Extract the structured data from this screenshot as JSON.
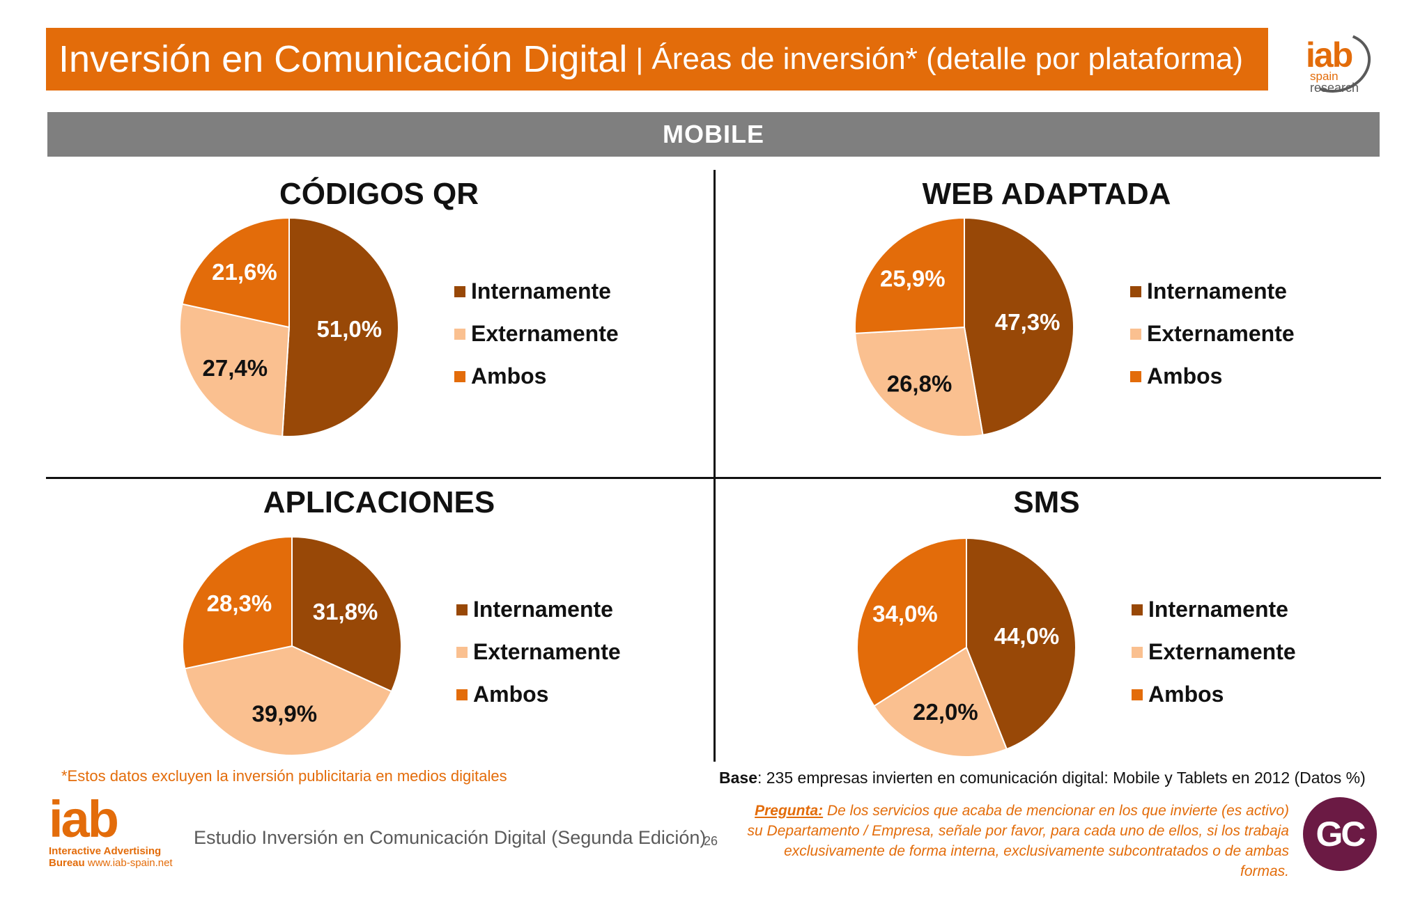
{
  "header": {
    "title_main": "Inversión en Comunicación Digital",
    "title_separator": "|",
    "title_sub": "Áreas de inversión* (detalle por plataforma)",
    "logo_word": "iab",
    "logo_spain": "spain",
    "logo_research": "research"
  },
  "section": {
    "label": "MOBILE"
  },
  "colors": {
    "internamente": "#984807",
    "externamente": "#fac090",
    "ambos": "#e36c0a",
    "accent": "#e36c0a"
  },
  "legend_labels": [
    "Internamente",
    "Externamente",
    "Ambos"
  ],
  "chart_data": [
    {
      "type": "pie",
      "title": "CÓDIGOS QR",
      "categories": [
        "Internamente",
        "Externamente",
        "Ambos"
      ],
      "values": [
        51.0,
        27.4,
        21.6
      ],
      "labels": [
        "51,0%",
        "27,4%",
        "21,6%"
      ],
      "legend": "right"
    },
    {
      "type": "pie",
      "title": "WEB ADAPTADA",
      "categories": [
        "Internamente",
        "Externamente",
        "Ambos"
      ],
      "values": [
        47.3,
        26.8,
        25.9
      ],
      "labels": [
        "47,3%",
        "26,8%",
        "25,9%"
      ],
      "legend": "right"
    },
    {
      "type": "pie",
      "title": "APLICACIONES",
      "categories": [
        "Internamente",
        "Externamente",
        "Ambos"
      ],
      "values": [
        31.8,
        39.9,
        28.3
      ],
      "labels": [
        "31,8%",
        "39,9%",
        "28,3%"
      ],
      "legend": "right"
    },
    {
      "type": "pie",
      "title": "SMS",
      "categories": [
        "Internamente",
        "Externamente",
        "Ambos"
      ],
      "values": [
        44.0,
        22.0,
        34.0
      ],
      "labels": [
        "44,0%",
        "22,0%",
        "34,0%"
      ],
      "legend": "right"
    }
  ],
  "footer": {
    "footnote": "*Estos datos excluyen la inversión publicitaria en medios digitales",
    "base_label": "Base",
    "base_text": ": 235 empresas invierten en comunicación digital: Mobile y Tablets en 2012 (Datos %)",
    "iab_word": "iab",
    "iab_line1": "Interactive Advertising",
    "iab_line2_bold": "Bureau",
    "iab_line2_url": "www.iab-spain.net",
    "study_name": "Estudio Inversión en Comunicación Digital (Segunda Edición)",
    "page_number": "26",
    "question_label": "Pregunta:",
    "question_text": "De los servicios que acaba de mencionar en los que invierte (es activo) su Departamento / Empresa, señale por favor, para cada uno de ellos, si los trabaja exclusivamente de forma interna, exclusivamente subcontratados o de ambas formas.",
    "gc_logo": "GC"
  }
}
